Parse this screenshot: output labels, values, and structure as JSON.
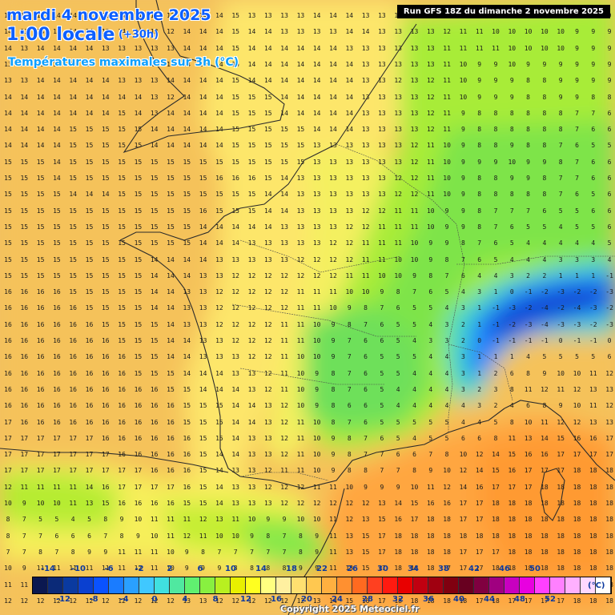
{
  "header": {
    "date": "mardi 4 novembre 2025",
    "hour": "1:00 locale",
    "offset": "(+30h)",
    "parameter": "Températures maximales sur 3h (°C)",
    "run": "Run GFS 18Z du dimanche 2 novembre 2025"
  },
  "legend": {
    "unit": "(°C)",
    "labels_top": [
      "-14",
      "-10",
      "-6",
      "-2",
      "2",
      "6",
      "10",
      "14",
      "18",
      "22",
      "26",
      "30",
      "34",
      "38",
      "42",
      "46",
      "50"
    ],
    "labels_bottom": [
      "-12",
      "-8",
      "-4",
      "0",
      "4",
      "8",
      "12",
      "16",
      "20",
      "24",
      "28",
      "32",
      "36",
      "40",
      "44",
      "48",
      "52"
    ],
    "colors": [
      "#0b1850",
      "#0b2a78",
      "#0a3aa0",
      "#0a40d0",
      "#0a52ff",
      "#1a7cff",
      "#2aa0ff",
      "#40c8ff",
      "#40e0e0",
      "#50e8a0",
      "#60f070",
      "#88f040",
      "#b8f020",
      "#e8f000",
      "#ffff20",
      "#ffff80",
      "#fff0a0",
      "#ffe070",
      "#ffc850",
      "#ffb040",
      "#ff9030",
      "#ff6a20",
      "#ff4020",
      "#ff1a10",
      "#e80000",
      "#c00010",
      "#a00010",
      "#800010",
      "#680020",
      "#800040",
      "#a00080",
      "#c800c0",
      "#e800e0",
      "#ff40ff",
      "#ff80ff",
      "#ffb0ff",
      "#ffd8ff",
      "#ffffff"
    ]
  },
  "map": {
    "rows": [
      "15 15 14 14 14 14 13 14 14 13 13 14 14 14 15 13 13 13 13 14 14 14 13 13 13 13 13 12 11 11 10 10 10 10 10 9 9 9",
      "14 13 14 14 14 14 13 14 14 13 12 14 14 14 15 14 14 13 13 13 13 14 14 13 13 13 13 12 11 11 10 10 10 10 10 9 9 9",
      "14 13 14 14 14 14 13 13 13 13 13 14 14 14 15 14 14 14 14 14 14 13 13 13 13 13 13 11 11 11 11 10 10 10 10 9 9 9",
      "13 13 13 13 13 13 13 13 13 13 13 14 14 14 15 14 14 14 14 14 14 14 13 13 13 13 13 11 10 9 9 10 9 9 9 9 9 9",
      "13 13 14 14 14 14 14 13 13 13 14 14 14 14 15 14 14 14 14 14 14 14 13 13 12 13 12 11 10 9 9 9 8 8 9 9 9 9",
      "14 14 14 14 14 14 14 14 14 13 12 14 14 14 15 15 15 14 14 14 14 14 13 13 13 13 12 11 10 9 9 9 8 8 9 9 8 8",
      "14 14 14 14 14 14 14 15 14 13 14 14 14 14 15 15 15 14 14 14 14 14 13 13 13 13 12 11 9 8 8 8 8 8 8 7 7 6",
      "14 14 14 14 15 15 15 15 15 14 14 14 14 14 15 15 15 15 15 14 14 14 13 13 13 13 12 11 9 8 8 8 8 8 8 7 6 6",
      "14 14 14 14 15 15 15 15 15 14 14 14 14 14 15 15 15 15 15 13 13 13 13 13 13 12 11 10 9 8 8 9 8 8 7 6 5 5",
      "15 15 15 14 15 15 15 15 15 15 15 15 15 15 15 15 15 15 15 13 13 13 13 13 13 12 11 10 9 9 9 10 9 9 8 7 6 6",
      "15 15 15 14 15 15 15 15 15 15 15 15 15 16 16 16 15 14 13 13 13 13 13 13 12 12 11 10 9 8 8 9 9 8 7 7 6 6",
      "15 15 15 15 14 14 14 15 15 15 15 15 15 15 15 15 14 14 13 13 13 13 13 13 12 12 11 10 9 8 8 8 8 8 7 6 5 6",
      "15 15 15 15 15 15 15 15 15 15 15 15 16 15 15 15 14 14 13 13 13 13 12 12 11 11 10 9 9 8 7 7 7 6 5 5 6 6",
      "15 15 15 15 15 15 15 15 15 15 15 15 14 14 14 14 14 13 13 13 13 12 12 11 11 11 10 9 9 8 7 6 5 5 4 5 5 6",
      "15 15 15 15 15 15 15 15 15 15 15 15 14 14 14 13 13 13 13 13 12 12 11 11 11 10 9 9 8 7 6 5 4 4 4 4 4 5",
      "15 15 15 15 15 15 15 15 15 14 14 14 14 13 13 13 13 13 12 12 12 12 11 11 10 10 9 8 7 6 5 4 4 4 3 3 3 4",
      "15 15 15 15 15 15 15 15 15 14 14 14 13 13 12 12 12 12 12 12 12 11 11 10 10 9 8 7 6 4 4 3 2 2 1 1 1 -1",
      "16 16 16 16 15 15 15 15 15 14 14 13 13 12 12 12 12 12 11 11 11 10 10 9 8 7 6 5 4 3 1 0 -1 -2 -3 -2 -2 -3",
      "16 16 16 16 16 15 15 15 15 14 14 13 13 12 12 12 12 12 11 11 10 9 8 7 6 5 5 4 3 1 -1 -3 -2 -4 -2 -4 -3 -2",
      "16 16 16 16 16 16 15 15 15 15 14 13 13 12 12 12 12 11 11 10 9 8 7 6 5 5 4 3 2 1 -1 -2 -3 -4 -3 -3 -2 -3",
      "16 16 16 16 16 16 16 15 15 15 14 14 13 13 12 12 12 11 11 10 9 7 6 6 5 4 3 3 2 0 -1 -1 -1 -1 0 -1 -1 0",
      "16 16 16 16 16 16 16 16 15 15 14 14 13 13 13 12 12 11 10 10 9 7 6 5 5 5 4 4 3 1 1 1 4 5 5 5 5 6",
      "16 16 16 16 16 16 16 16 15 15 15 14 14 14 13 13 12 11 10 9 8 7 6 5 5 4 4 4 3 1 2 6 8 9 10 10 11 12",
      "16 16 16 16 16 16 16 16 16 16 15 15 14 14 14 13 12 11 10 9 8 7 6 5 4 4 4 4 3 2 3 8 11 12 11 12 13 13",
      "16 16 16 16 16 16 16 16 16 16 16 15 15 15 14 14 13 12 10 9 8 6 6 5 4 4 4 4 4 3 2 4 6 8 9 10 11 12",
      "17 16 16 16 16 16 16 16 16 16 16 15 15 15 14 14 13 12 11 10 8 7 6 5 5 5 5 5 4 4 5 8 10 11 12 12 13 13",
      "17 17 17 17 17 17 16 16 16 16 16 16 15 15 14 13 13 12 11 10 9 8 7 6 5 4 5 5 6 6 8 11 13 14 15 16 16 17",
      "17 17 17 17 17 17 17 16 16 16 16 16 15 14 14 13 13 12 11 10 9 8 7 7 6 6 7 8 10 12 14 15 16 16 17 17 17 17",
      "17 17 17 17 17 17 17 17 17 16 16 16 15 14 13 13 12 11 11 10 9 8 8 7 7 8 9 10 12 14 15 16 17 17 17 18 18 18",
      "12 11 11 11 11 14 16 17 17 17 17 16 15 14 13 13 12 12 12 11 11 10 9 9 9 10 11 12 14 16 17 17 17 18 18 18 18 18",
      "10 9 10 10 11 13 15 16 16 16 16 15 15 14 13 13 13 12 12 12 12 12 12 13 14 15 16 16 17 17 18 18 18 18 18 18 18 18",
      "8 7 5 5 4 5 8 9 10 11 11 11 12 13 11 10 9 9 10 10 11 12 13 15 16 17 18 18 17 17 18 18 18 18 18 18 18 18",
      "8 7 7 6 6 6 7 8 9 10 11 12 11 10 10 9 8 7 8 9 11 13 15 17 18 18 18 18 18 18 18 18 18 18 18 18 18 18",
      "7 7 8 7 8 9 9 11 11 11 10 9 8 7 7 7 7 7 8 9 11 13 15 17 18 18 18 18 17 17 17 18 18 18 18 18 18 18",
      "10 9 11 11 11 11 11 11 12 11 10 9 9 9 8 8 8 8 9 9 11 13 15 17 18 18 18 17 17 17 18 18 18 18 18 18 18 18",
      "11 11 11 11 12 12 12 12 12 12 12 12 11 11 11 11 10 10 10 11 12 14 15 17 18 18 18 18 17 17 18 18 17 17 18 18 18 18",
      "12 12 12 12 12 12 12 12 12 12 12 13 13 12 12 12 12 12 12 13 14 15 16 17 18 18 18 18 18 17 18 17 17 17 17 18 18 18"
    ]
  }
}
